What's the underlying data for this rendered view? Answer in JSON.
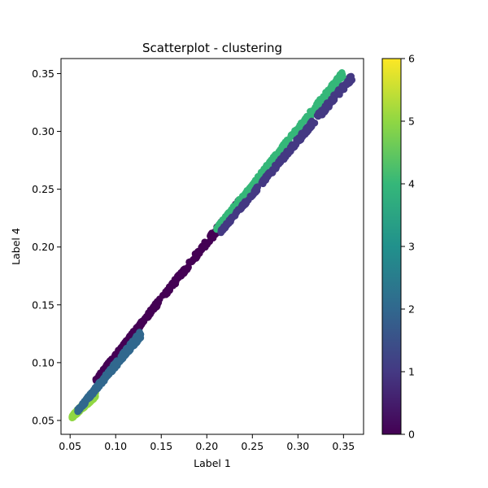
{
  "chart_data": {
    "type": "scatter",
    "title": "Scatterplot - clustering",
    "xlabel": "Label 1",
    "ylabel": "Label 4",
    "xlim": [
      0.04,
      0.372
    ],
    "ylim": [
      0.038,
      0.363
    ],
    "x_ticks": [
      0.05,
      0.1,
      0.15,
      0.2,
      0.25,
      0.3,
      0.35
    ],
    "x_tick_labels": [
      "0.05",
      "0.10",
      "0.15",
      "0.20",
      "0.25",
      "0.30",
      "0.35"
    ],
    "y_ticks": [
      0.05,
      0.1,
      0.15,
      0.2,
      0.25,
      0.3,
      0.35
    ],
    "y_tick_labels": [
      "0.05",
      "0.10",
      "0.15",
      "0.20",
      "0.25",
      "0.30",
      "0.35"
    ],
    "grid": false,
    "colormap": "viridis",
    "colorbar": {
      "range": [
        0,
        6
      ],
      "ticks": [
        0,
        1,
        2,
        3,
        4,
        5,
        6
      ],
      "tick_labels": [
        "0",
        "1",
        "2",
        "3",
        "4",
        "5",
        "6"
      ],
      "stops": [
        "#440154",
        "#443983",
        "#31688e",
        "#21918c",
        "#35b779",
        "#90d743",
        "#fde725"
      ]
    },
    "clusters": [
      {
        "label": 5,
        "color": "#90d743",
        "x_range": [
          0.052,
          0.078
        ],
        "y_range": [
          0.053,
          0.073
        ]
      },
      {
        "label": 2,
        "color": "#31688e",
        "x_range": [
          0.058,
          0.128
        ],
        "y_range": [
          0.058,
          0.125
        ]
      },
      {
        "label": 0,
        "color": "#440154",
        "x_range": [
          0.078,
          0.235
        ],
        "y_range": [
          0.085,
          0.238
        ]
      },
      {
        "label": 4,
        "color": "#35b779",
        "x_range": [
          0.21,
          0.35
        ],
        "y_range": [
          0.215,
          0.35
        ]
      },
      {
        "label": 1,
        "color": "#443983",
        "x_range": [
          0.215,
          0.36
        ],
        "y_range": [
          0.213,
          0.348
        ]
      }
    ]
  }
}
